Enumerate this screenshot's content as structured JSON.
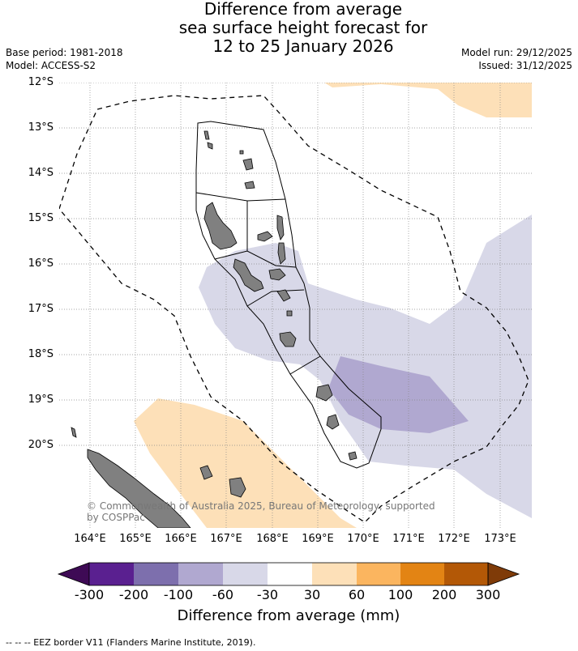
{
  "header": {
    "title_line1": "Difference from average",
    "title_line2": "sea surface height forecast for",
    "title_line3": "12 to 25 January 2026",
    "base_period": "Base period: 1981-2018",
    "model": "Model: ACCESS-S2",
    "model_run": "Model run: 29/12/2025",
    "issued": "Issued: 31/12/2025"
  },
  "map": {
    "latitude_labels": [
      "12°S",
      "13°S",
      "14°S",
      "15°S",
      "16°S",
      "17°S",
      "18°S",
      "19°S",
      "20°S"
    ],
    "longitude_labels": [
      "164°E",
      "165°E",
      "166°E",
      "167°E",
      "168°E",
      "169°E",
      "170°E",
      "171°E",
      "172°E",
      "173°E"
    ],
    "copyright_line1": "© Commonwealth of Australia 2025, Bureau of Meteorology, supported",
    "copyright_line2": "by COSPPac",
    "colors": {
      "land": "#808080",
      "light_purple": "#d8d8e8",
      "mid_purple": "#b0a8d0",
      "light_orange": "#fde0b8",
      "grid": "#888888"
    }
  },
  "colorbar": {
    "ticks": [
      "-300",
      "-200",
      "-100",
      "-60",
      "-30",
      "30",
      "60",
      "100",
      "200",
      "300"
    ],
    "colors": [
      "#3e0a55",
      "#5a2090",
      "#7d6fad",
      "#b0a8d0",
      "#d8d8e8",
      "#ffffff",
      "#fde0b8",
      "#fbb55f",
      "#e38414",
      "#b35806",
      "#7f3b08"
    ],
    "label": "Difference from average (mm)"
  },
  "footnote": "--  --  -- EEZ border V11 (Flanders Marine Institute, 2019)."
}
